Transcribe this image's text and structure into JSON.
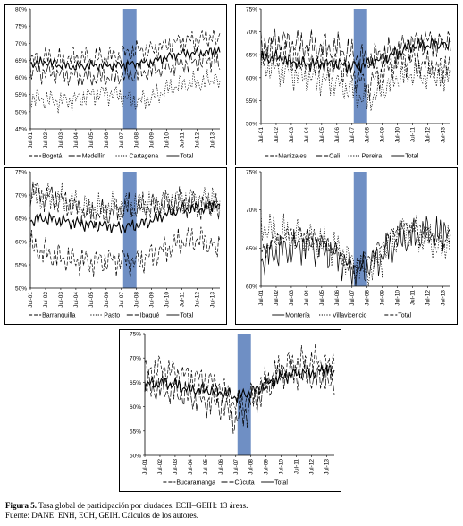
{
  "figure": {
    "caption_label": "Figura 5.",
    "caption_text": "Tasa global de participación por ciudades. ECH–GEIH: 13 áreas.",
    "source": "Fuente: DANE: ENH, ECH, GEIH. Cálculos de los autores."
  },
  "chart_data": [
    {
      "type": "line",
      "ylim": [
        45,
        80
      ],
      "yticks": [
        "45%",
        "50%",
        "55%",
        "60%",
        "65%",
        "70%",
        "75%",
        "80%"
      ],
      "xticks": [
        "Jul-01",
        "Jul-02",
        "Jul-03",
        "Jul-04",
        "Jul-05",
        "Jul-06",
        "Jul-07",
        "Jul-08",
        "Jul-09",
        "Jul-10",
        "Jul-11",
        "Jul-12",
        "Jul-13"
      ],
      "shade": [
        "Jul-07",
        "Jul-08"
      ],
      "series": [
        {
          "name": "Bogotá",
          "style": "dashed",
          "values": [
            64.5,
            66,
            65,
            66,
            65.5,
            66,
            66.5,
            68,
            68,
            69.5,
            70.5,
            71,
            72
          ]
        },
        {
          "name": "Medellín",
          "style": "longdash",
          "values": [
            62,
            61.5,
            61,
            60.5,
            60,
            60,
            60.5,
            61,
            62,
            63,
            64,
            64.5,
            65
          ]
        },
        {
          "name": "Cartagena",
          "style": "dotted",
          "values": [
            54,
            53.5,
            53,
            53.5,
            55,
            55.5,
            54.5,
            53,
            54,
            56.5,
            58,
            58.5,
            59
          ]
        },
        {
          "name": "Total",
          "style": "solid",
          "values": [
            64,
            64.5,
            63.5,
            63,
            63.5,
            63.5,
            63.5,
            64,
            64.5,
            66,
            67,
            67,
            67.5
          ]
        }
      ]
    },
    {
      "type": "line",
      "ylim": [
        50,
        75
      ],
      "yticks": [
        "50%",
        "55%",
        "60%",
        "65%",
        "70%",
        "75%"
      ],
      "xticks": [
        "Jul-01",
        "Jul-02",
        "Jul-03",
        "Jul-04",
        "Jul-05",
        "Jul-06",
        "Jul-07",
        "Jul-08",
        "Jul-09",
        "Jul-10",
        "Jul-11",
        "Jul-12",
        "Jul-13"
      ],
      "shade": [
        "Jul-07",
        "Jul-08"
      ],
      "series": [
        {
          "name": "Manizales",
          "style": "dashed",
          "values": [
            65,
            64.5,
            64,
            63.5,
            63,
            62.5,
            61,
            58,
            61,
            63.5,
            64,
            62.5,
            61.5
          ]
        },
        {
          "name": "Cali",
          "style": "longdash",
          "values": [
            67,
            68,
            67.5,
            67,
            66.5,
            66.5,
            65,
            64,
            65,
            66,
            67.5,
            68,
            67.5
          ]
        },
        {
          "name": "Pereira",
          "style": "dotted",
          "values": [
            63,
            62,
            61,
            60,
            59.5,
            59,
            57,
            55,
            57.5,
            60,
            61,
            60.5,
            61
          ]
        },
        {
          "name": "Total",
          "style": "solid",
          "values": [
            64,
            64.5,
            63.5,
            63,
            63,
            63,
            62.5,
            63,
            64,
            65.5,
            67,
            67,
            67.5
          ]
        }
      ]
    },
    {
      "type": "line",
      "ylim": [
        50,
        75
      ],
      "yticks": [
        "50%",
        "55%",
        "60%",
        "65%",
        "70%",
        "75%"
      ],
      "xticks": [
        "Jul-01",
        "Jul-02",
        "Jul-03",
        "Jul-04",
        "Jul-05",
        "Jul-06",
        "Jul-07",
        "Jul-08",
        "Jul-09",
        "Jul-10",
        "Jul-11",
        "Jul-12",
        "Jul-13"
      ],
      "shade": [
        "Jul-07",
        "Jul-08"
      ],
      "series": [
        {
          "name": "Barranquilla",
          "style": "dashed",
          "values": [
            59,
            57.5,
            56.5,
            56,
            55.5,
            56,
            56,
            55.5,
            57,
            58.5,
            60,
            60.5,
            59.5
          ]
        },
        {
          "name": "Pasto",
          "style": "dotted",
          "values": [
            70,
            69.5,
            69,
            68,
            67,
            67,
            67.5,
            68,
            68,
            68.5,
            69,
            69,
            68.5
          ]
        },
        {
          "name": "Ibagué",
          "style": "longdash",
          "values": [
            71,
            70,
            69,
            67,
            66,
            66,
            67,
            67.5,
            67.5,
            68,
            68.5,
            68,
            67.5
          ]
        },
        {
          "name": "Total",
          "style": "solid",
          "values": [
            64.5,
            65,
            64.5,
            64,
            63.5,
            63.5,
            63,
            63.5,
            64.5,
            66,
            67,
            67,
            67.5
          ]
        }
      ]
    },
    {
      "type": "line",
      "ylim": [
        60,
        75
      ],
      "yticks": [
        "60%",
        "65%",
        "70%",
        "75%"
      ],
      "xticks": [
        "Jul-01",
        "Jul-02",
        "Jul-03",
        "Jul-04",
        "Jul-05",
        "Jul-06",
        "Jul-07",
        "Jul-08",
        "Jul-09",
        "Jul-10",
        "Jul-11",
        "Jul-12",
        "Jul-13"
      ],
      "shade": [
        "Jul-07",
        "Jul-08"
      ],
      "series": [
        {
          "name": "Montería",
          "style": "solid",
          "values": [
            63.5,
            64.5,
            65,
            65.5,
            65,
            64,
            62,
            62.5,
            64,
            66,
            66.5,
            67,
            66.5
          ]
        },
        {
          "name": "Villavicencio",
          "style": "dotted",
          "values": [
            68,
            67,
            66.5,
            66,
            65.5,
            65,
            63,
            61.5,
            64,
            67,
            67.5,
            66,
            65
          ]
        },
        {
          "name": "Total",
          "style": "dashed",
          "values": [
            64.5,
            66,
            67,
            66.5,
            66,
            64.5,
            62,
            63.5,
            65.5,
            67.5,
            68,
            67,
            66
          ]
        }
      ]
    },
    {
      "type": "line",
      "ylim": [
        50,
        75
      ],
      "yticks": [
        "50%",
        "55%",
        "60%",
        "65%",
        "70%",
        "75%"
      ],
      "xticks": [
        "Jul-01",
        "Jul-02",
        "Jul-03",
        "Jul-04",
        "Jul-05",
        "Jul-06",
        "Jul-07",
        "Jul-08",
        "Jul-09",
        "Jul-10",
        "Jul-11",
        "Jul-12",
        "Jul-13"
      ],
      "shade": [
        "Jul-07",
        "Jul-08"
      ],
      "series": [
        {
          "name": "Bucaramanga",
          "style": "dashed",
          "values": [
            67,
            68,
            67,
            66,
            65.5,
            64,
            60,
            62,
            65,
            68,
            69,
            69.5,
            69
          ]
        },
        {
          "name": "Cúcuta",
          "style": "longdash",
          "values": [
            64,
            63.5,
            63,
            62,
            61,
            60.5,
            57,
            60,
            64,
            67,
            66.5,
            66,
            65.5
          ]
        },
        {
          "name": "Total",
          "style": "solid",
          "values": [
            64.5,
            65,
            64.5,
            63.5,
            63.5,
            63,
            62,
            63,
            64.5,
            66,
            67,
            67,
            67.5
          ]
        }
      ]
    }
  ]
}
